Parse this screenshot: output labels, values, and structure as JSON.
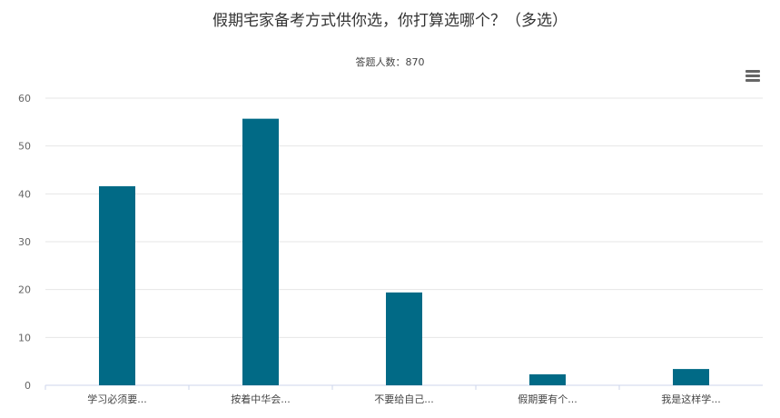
{
  "chart_data": {
    "type": "bar",
    "title": "假期宅家备考方式供你选，你打算选哪个？（多选）",
    "subtitle": "答题人数：870",
    "categories": [
      "学习必须要...",
      "按着中华会...",
      "不要给自己...",
      "假期要有个...",
      "我是这样学..."
    ],
    "values": [
      41.6,
      55.7,
      19.4,
      2.3,
      3.4
    ],
    "yticks": [
      0,
      10,
      20,
      30,
      40,
      50,
      60
    ],
    "ylim": [
      0,
      60
    ],
    "xlabel": "",
    "ylabel": "",
    "grid": true,
    "bar_color": "#016a86"
  },
  "toolbar": {
    "menu_icon": "hamburger-menu-icon"
  }
}
